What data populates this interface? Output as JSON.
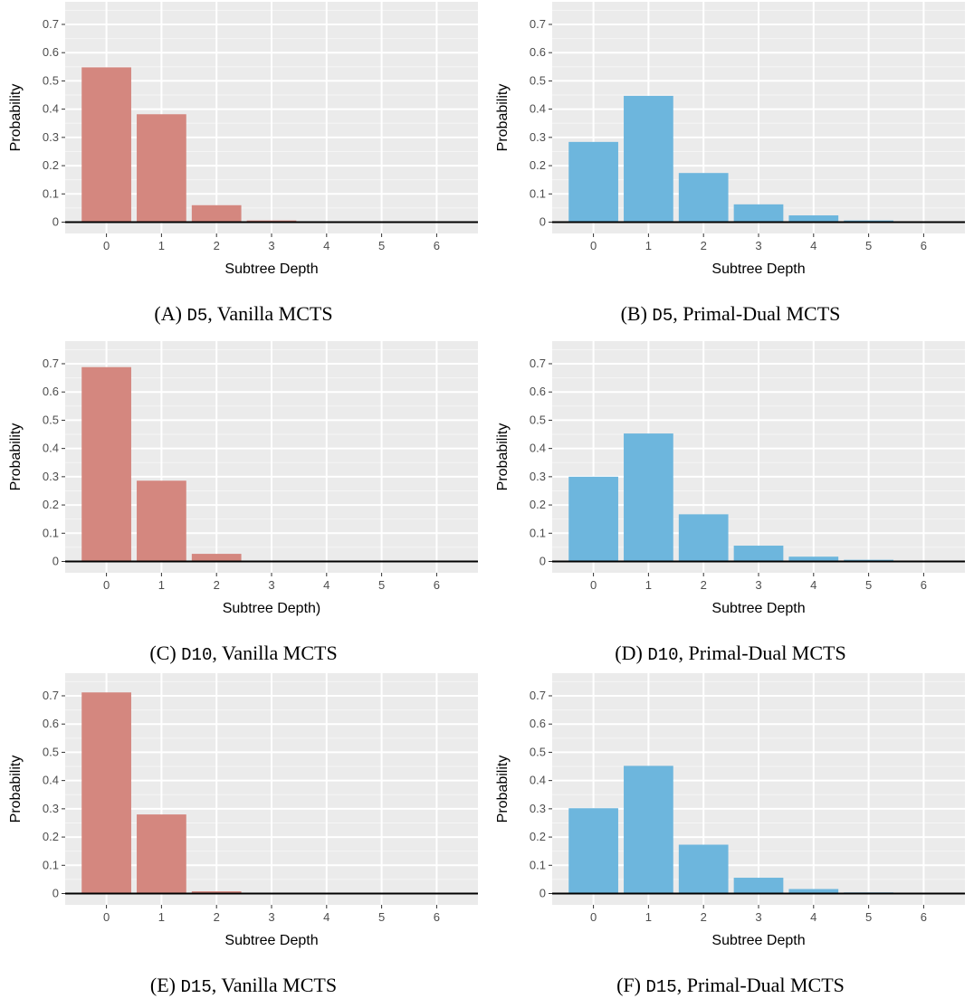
{
  "chart_data": [
    {
      "type": "bar",
      "caption": {
        "prefix": "(A) ",
        "code": "D5",
        "suffix": ", Vanilla MCTS"
      },
      "xlabel": "Subtree Depth",
      "ylabel": "Probability",
      "categories": [
        "0",
        "1",
        "2",
        "3",
        "4",
        "5",
        "6"
      ],
      "values": [
        0.548,
        0.382,
        0.06,
        0.006,
        0.0,
        0.0,
        0.0
      ],
      "y_ticks": [
        "0",
        "0.1",
        "0.2",
        "0.3",
        "0.4",
        "0.5",
        "0.6",
        "0.7"
      ],
      "ylim": [
        -0.04,
        0.78
      ],
      "color": "#d4877f",
      "grid": true
    },
    {
      "type": "bar",
      "caption": {
        "prefix": "(B) ",
        "code": "D5",
        "suffix": ", Primal-Dual MCTS"
      },
      "xlabel": "Subtree Depth",
      "ylabel": "Probability",
      "categories": [
        "0",
        "1",
        "2",
        "3",
        "4",
        "5",
        "6"
      ],
      "values": [
        0.284,
        0.447,
        0.174,
        0.063,
        0.024,
        0.006,
        0.001
      ],
      "y_ticks": [
        "0",
        "0.1",
        "0.2",
        "0.3",
        "0.4",
        "0.5",
        "0.6",
        "0.7"
      ],
      "ylim": [
        -0.04,
        0.78
      ],
      "color": "#6db6dd",
      "grid": true
    },
    {
      "type": "bar",
      "caption": {
        "prefix": "(C) ",
        "code": "D10",
        "suffix": ", Vanilla MCTS"
      },
      "xlabel": "Subtree Depth)",
      "ylabel": "Probability",
      "categories": [
        "0",
        "1",
        "2",
        "3",
        "4",
        "5",
        "6"
      ],
      "values": [
        0.688,
        0.286,
        0.027,
        0.001,
        0.0,
        0.0,
        0.0
      ],
      "y_ticks": [
        "0",
        "0.1",
        "0.2",
        "0.3",
        "0.4",
        "0.5",
        "0.6",
        "0.7"
      ],
      "ylim": [
        -0.04,
        0.78
      ],
      "color": "#d4877f",
      "grid": true
    },
    {
      "type": "bar",
      "caption": {
        "prefix": "(D) ",
        "code": "D10",
        "suffix": ", Primal-Dual MCTS"
      },
      "xlabel": "Subtree Depth",
      "ylabel": "Probability",
      "categories": [
        "0",
        "1",
        "2",
        "3",
        "4",
        "5",
        "6"
      ],
      "values": [
        0.3,
        0.453,
        0.167,
        0.056,
        0.017,
        0.006,
        0.001
      ],
      "y_ticks": [
        "0",
        "0.1",
        "0.2",
        "0.3",
        "0.4",
        "0.5",
        "0.6",
        "0.7"
      ],
      "ylim": [
        -0.04,
        0.78
      ],
      "color": "#6db6dd",
      "grid": true
    },
    {
      "type": "bar",
      "caption": {
        "prefix": "(E) ",
        "code": "D15",
        "suffix": ", Vanilla MCTS"
      },
      "xlabel": "Subtree Depth",
      "ylabel": "Probability",
      "categories": [
        "0",
        "1",
        "2",
        "3",
        "4",
        "5",
        "6"
      ],
      "values": [
        0.712,
        0.28,
        0.008,
        0.0,
        0.0,
        0.0,
        0.0
      ],
      "y_ticks": [
        "0",
        "0.1",
        "0.2",
        "0.3",
        "0.4",
        "0.5",
        "0.6",
        "0.7"
      ],
      "ylim": [
        -0.04,
        0.78
      ],
      "color": "#d4877f",
      "grid": true
    },
    {
      "type": "bar",
      "caption": {
        "prefix": "(F) ",
        "code": "D15",
        "suffix": ", Primal-Dual MCTS"
      },
      "xlabel": "Subtree Depth",
      "ylabel": "Probability",
      "categories": [
        "0",
        "1",
        "2",
        "3",
        "4",
        "5",
        "6"
      ],
      "values": [
        0.302,
        0.452,
        0.173,
        0.056,
        0.016,
        0.004,
        0.001
      ],
      "y_ticks": [
        "0",
        "0.1",
        "0.2",
        "0.3",
        "0.4",
        "0.5",
        "0.6",
        "0.7"
      ],
      "ylim": [
        -0.04,
        0.78
      ],
      "color": "#6db6dd",
      "grid": true
    }
  ]
}
